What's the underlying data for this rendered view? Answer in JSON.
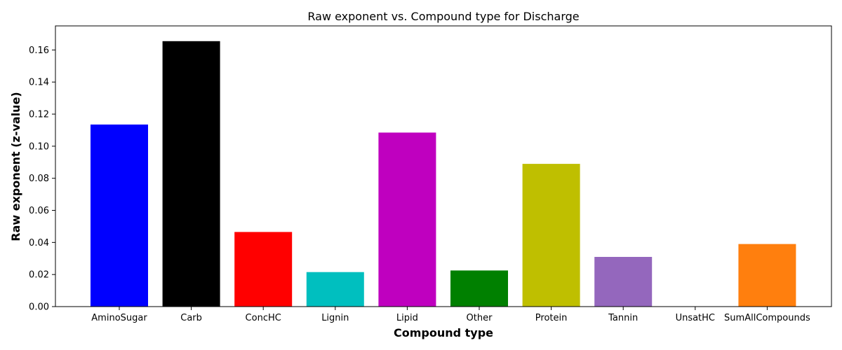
{
  "chart_data": {
    "type": "bar",
    "title": "Raw exponent vs. Compound type for Discharge",
    "xlabel": "Compound type",
    "ylabel": "Raw exponent (z-value)",
    "ylim": [
      0,
      0.175
    ],
    "yticks": [
      "0.00",
      "0.02",
      "0.04",
      "0.06",
      "0.08",
      "0.10",
      "0.12",
      "0.14",
      "0.16"
    ],
    "grid": false,
    "categories": [
      "AminoSugar",
      "Carb",
      "ConcHC",
      "Lignin",
      "Lipid",
      "Other",
      "Protein",
      "Tannin",
      "UnsatHC",
      "SumAllCompounds"
    ],
    "values": [
      0.1135,
      0.1655,
      0.0465,
      0.0215,
      0.1085,
      0.0225,
      0.089,
      0.031,
      0.0,
      0.039
    ],
    "colors": [
      "#0000ff",
      "#000000",
      "#ff0000",
      "#00bfbf",
      "#bf00bf",
      "#008000",
      "#bfbf00",
      "#9467bd",
      "#ffffff",
      "#ff7f0e"
    ]
  }
}
